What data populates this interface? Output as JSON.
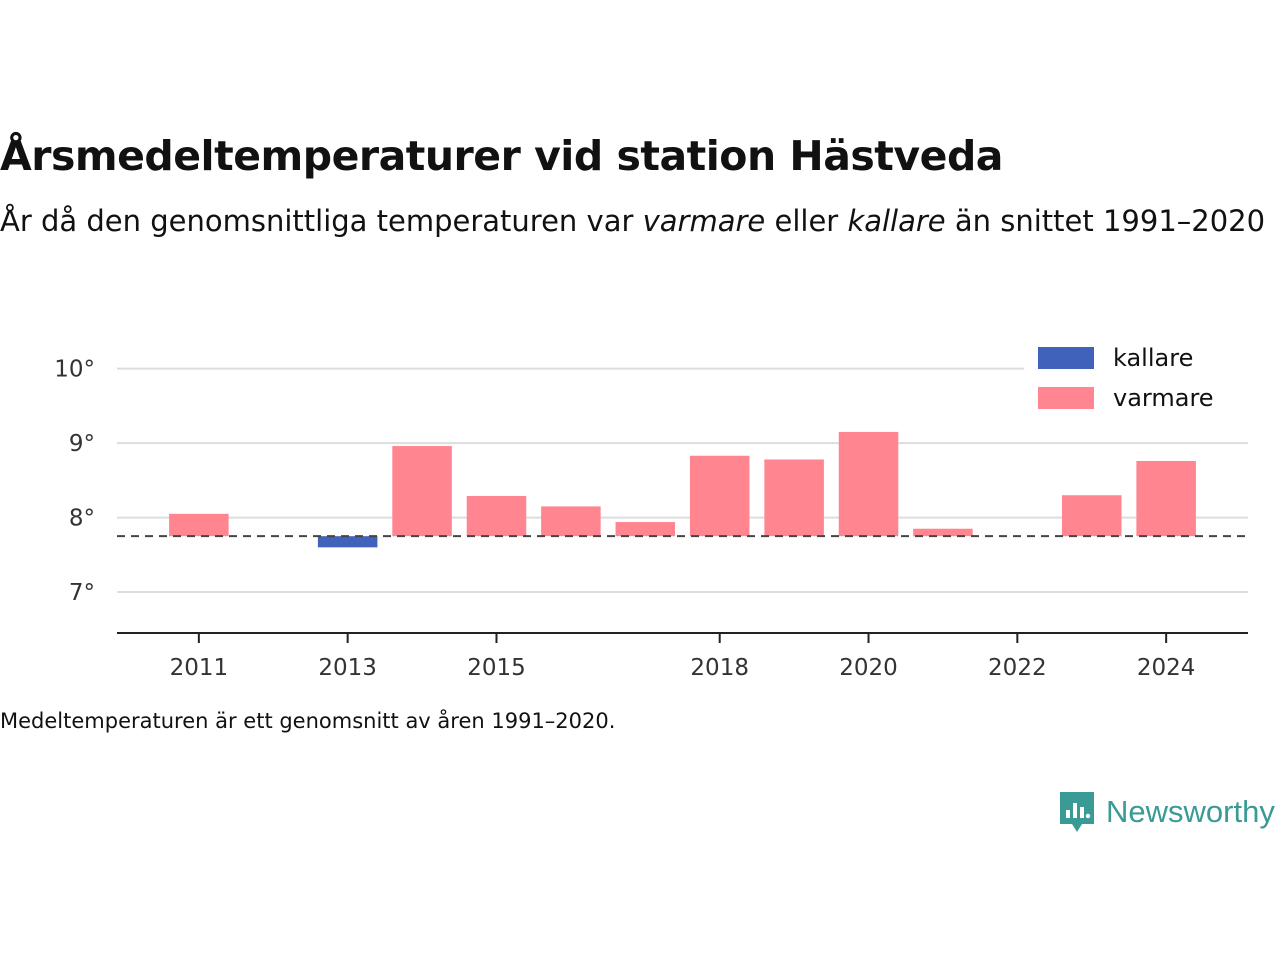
{
  "chart_data": {
    "type": "bar",
    "title": "Årsmedeltemperaturer vid station Hästveda",
    "subtitle": {
      "part1": "År då den genomsnittliga temperaturen var ",
      "em1": "varmare",
      "part2": " eller ",
      "em2": "kallare",
      "part3": " än snittet 1991–2020"
    },
    "footnote": "Medeltemperaturen är ett genomsnitt av åren 1991–2020.",
    "baseline": 7.75,
    "ylim": [
      6.45,
      10.25
    ],
    "yticks": [
      7,
      8,
      9,
      10
    ],
    "ytick_labels": [
      "7°",
      "8°",
      "9°",
      "10°"
    ],
    "xlim": [
      2009.9,
      2025.1
    ],
    "xticks": [
      2011,
      2013,
      2015,
      2018,
      2020,
      2022,
      2024
    ],
    "xtick_labels": [
      "2011",
      "2013",
      "2015",
      "2018",
      "2020",
      "2022",
      "2024"
    ],
    "grid": true,
    "legend_position": "top-right",
    "legend": [
      {
        "label": "kallare",
        "color": "#4062bb"
      },
      {
        "label": "varmare",
        "color": "#ff8591"
      }
    ],
    "colors": {
      "kallare": "#4062bb",
      "varmare": "#ff8591"
    },
    "bars": [
      {
        "year": 2011,
        "value": 8.05,
        "category": "varmare"
      },
      {
        "year": 2013,
        "value": 7.6,
        "category": "kallare"
      },
      {
        "year": 2014,
        "value": 8.96,
        "category": "varmare"
      },
      {
        "year": 2015,
        "value": 8.29,
        "category": "varmare"
      },
      {
        "year": 2016,
        "value": 8.15,
        "category": "varmare"
      },
      {
        "year": 2017,
        "value": 7.94,
        "category": "varmare"
      },
      {
        "year": 2018,
        "value": 8.83,
        "category": "varmare"
      },
      {
        "year": 2019,
        "value": 8.78,
        "category": "varmare"
      },
      {
        "year": 2020,
        "value": 9.15,
        "category": "varmare"
      },
      {
        "year": 2021,
        "value": 7.85,
        "category": "varmare"
      },
      {
        "year": 2023,
        "value": 8.3,
        "category": "varmare"
      },
      {
        "year": 2024,
        "value": 8.76,
        "category": "varmare"
      }
    ]
  },
  "brand": {
    "name": "Newsworthy",
    "icon": "newsworthy-logo-icon",
    "color": "#3a9a95"
  }
}
